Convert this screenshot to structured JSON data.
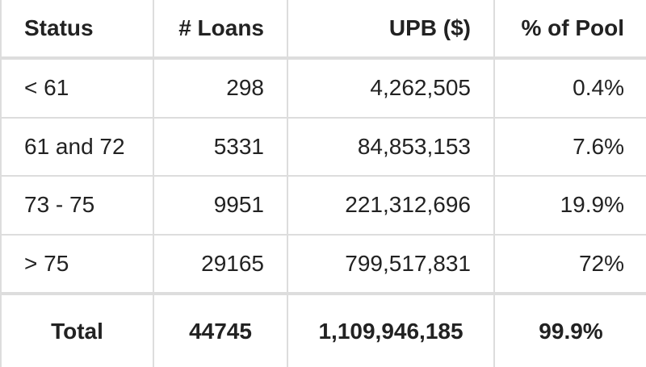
{
  "table": {
    "headers": {
      "status": "Status",
      "loans": "# Loans",
      "upb": "UPB ($)",
      "pool": "% of Pool"
    },
    "rows": [
      {
        "status": "< 61",
        "loans": "298",
        "upb": "4,262,505",
        "pool": "0.4%"
      },
      {
        "status": "61 and 72",
        "loans": "5331",
        "upb": "84,853,153",
        "pool": "7.6%"
      },
      {
        "status": "73 - 75",
        "loans": "9951",
        "upb": "221,312,696",
        "pool": "19.9%"
      },
      {
        "status": "> 75",
        "loans": "29165",
        "upb": "799,517,831",
        "pool": "72%"
      }
    ],
    "total": {
      "status": "Total",
      "loans": "44745",
      "upb": "1,109,946,185",
      "pool": "99.9%"
    }
  }
}
